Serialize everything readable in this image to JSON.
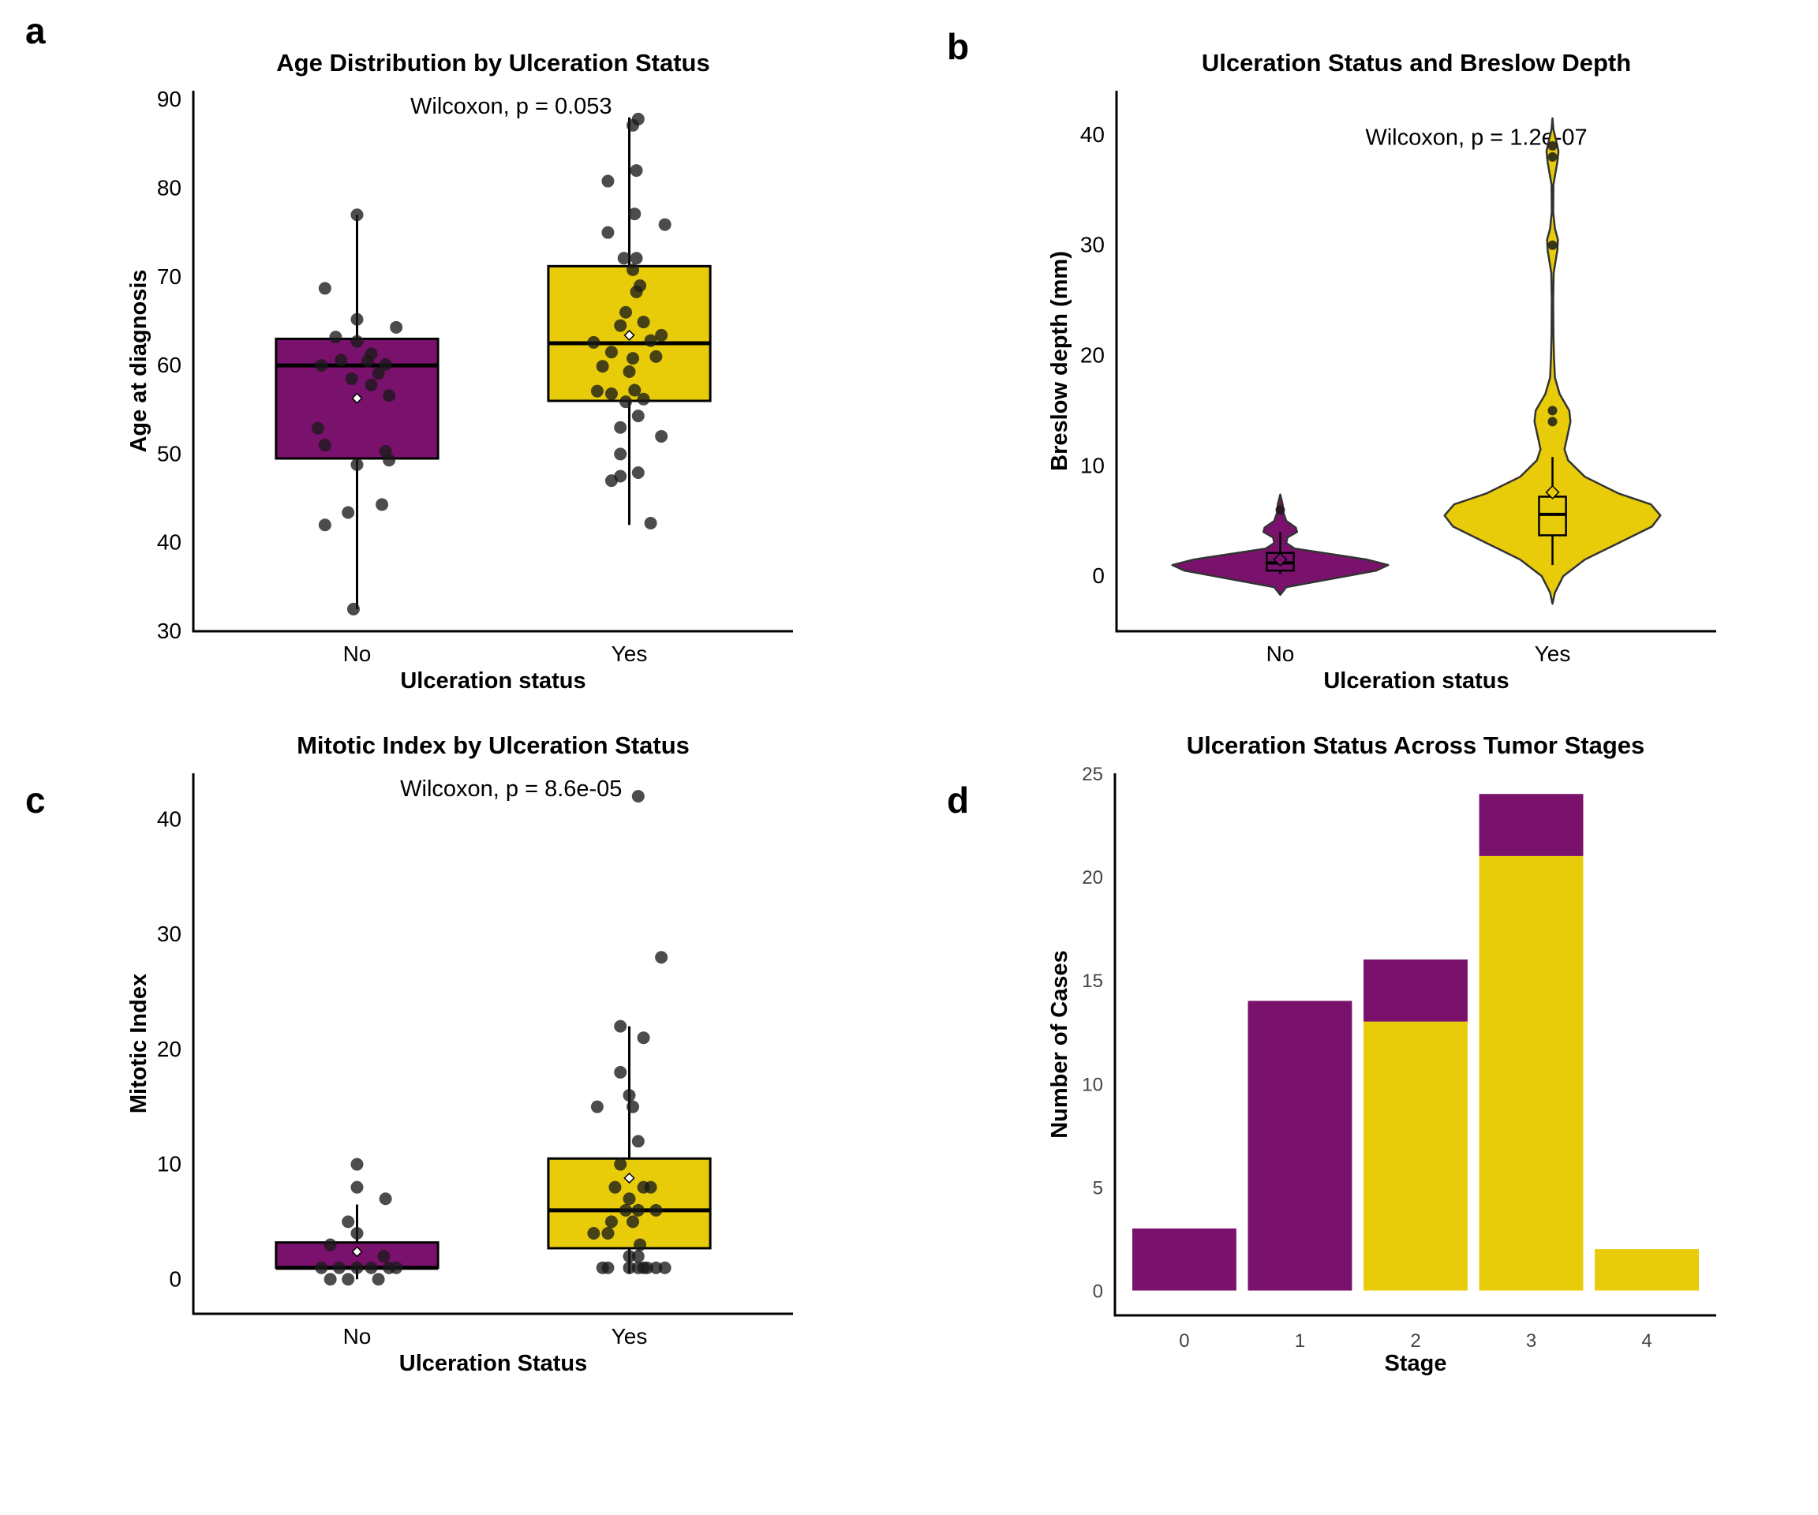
{
  "colors": {
    "no": "#7a116c",
    "yes": "#e8cc0a",
    "point": "#1a1a1a"
  },
  "chart_data": [
    {
      "id": "a",
      "panel_label": "a",
      "type": "box",
      "title": "Age Distribution by Ulceration Status",
      "xlabel": "Ulceration status",
      "ylabel": "Age at diagnosis",
      "ylim": [
        30,
        91
      ],
      "yticks": [
        30,
        40,
        50,
        60,
        70,
        80,
        90
      ],
      "categories": [
        "No",
        "Yes"
      ],
      "annotation": "Wilcoxon, p = 0.053",
      "groups": [
        {
          "name": "No",
          "q1": 49.5,
          "median": 60,
          "q3": 63,
          "whisker_low": 32.5,
          "whisker_high": 77,
          "mean": 56.3,
          "points": [
            [
              0.0,
              77
            ],
            [
              -0.18,
              68.7
            ],
            [
              0.0,
              65.2
            ],
            [
              0.22,
              64.3
            ],
            [
              -0.12,
              63.2
            ],
            [
              0.0,
              62.7
            ],
            [
              0.08,
              61.3
            ],
            [
              -0.09,
              60.6
            ],
            [
              0.06,
              60.5
            ],
            [
              0.16,
              60.1
            ],
            [
              -0.2,
              60.0
            ],
            [
              0.12,
              59.1
            ],
            [
              -0.03,
              58.5
            ],
            [
              0.08,
              57.8
            ],
            [
              0.18,
              56.6
            ],
            [
              -0.22,
              52.9
            ],
            [
              -0.18,
              51.0
            ],
            [
              0.16,
              50.3
            ],
            [
              0.0,
              48.8
            ],
            [
              0.18,
              49.3
            ],
            [
              0.14,
              44.3
            ],
            [
              -0.05,
              43.4
            ],
            [
              -0.18,
              42.0
            ],
            [
              -0.02,
              32.5
            ]
          ]
        },
        {
          "name": "Yes",
          "q1": 56,
          "median": 62.5,
          "q3": 71.2,
          "whisker_low": 42,
          "whisker_high": 88,
          "mean": 63.4,
          "points": [
            [
              0.05,
              87.8
            ],
            [
              0.02,
              87.1
            ],
            [
              0.04,
              82.0
            ],
            [
              -0.12,
              80.8
            ],
            [
              0.03,
              77.1
            ],
            [
              0.2,
              75.9
            ],
            [
              -0.12,
              75.0
            ],
            [
              -0.03,
              72.1
            ],
            [
              0.04,
              72.1
            ],
            [
              0.02,
              70.8
            ],
            [
              0.06,
              69.0
            ],
            [
              0.04,
              68.3
            ],
            [
              -0.02,
              66.0
            ],
            [
              0.08,
              64.9
            ],
            [
              -0.05,
              64.5
            ],
            [
              0.18,
              63.4
            ],
            [
              0.12,
              62.8
            ],
            [
              -0.2,
              62.6
            ],
            [
              -0.1,
              61.5
            ],
            [
              0.15,
              61.0
            ],
            [
              0.02,
              60.8
            ],
            [
              -0.15,
              59.9
            ],
            [
              0.0,
              59.3
            ],
            [
              -0.18,
              57.1
            ],
            [
              -0.1,
              56.8
            ],
            [
              0.03,
              57.2
            ],
            [
              0.08,
              56.2
            ],
            [
              -0.02,
              55.9
            ],
            [
              0.05,
              54.3
            ],
            [
              -0.05,
              53.0
            ],
            [
              0.18,
              52.0
            ],
            [
              -0.05,
              50.0
            ],
            [
              0.05,
              47.9
            ],
            [
              -0.05,
              47.5
            ],
            [
              -0.1,
              47.0
            ],
            [
              0.12,
              42.2
            ]
          ]
        }
      ]
    },
    {
      "id": "b",
      "panel_label": "b",
      "type": "violin",
      "title": "Ulceration Status and Breslow Depth",
      "xlabel": "Ulceration status",
      "ylabel": "Breslow depth (mm)",
      "ylim": [
        -5,
        44
      ],
      "yticks": [
        0,
        10,
        20,
        30,
        40
      ],
      "categories": [
        "No",
        "Yes"
      ],
      "annotation": "Wilcoxon, p = 1.2e-07",
      "groups": [
        {
          "name": "No",
          "q1": 0.5,
          "median": 1.2,
          "q3": 2.1,
          "whisker_low": 0.2,
          "whisker_high": 4.0,
          "mean": 1.5,
          "outliers": [
            6.0
          ],
          "density": [
            [
              -1.7,
              0.0
            ],
            [
              -1.0,
              0.05
            ],
            [
              0.0,
              0.55
            ],
            [
              0.5,
              0.8
            ],
            [
              1.0,
              0.9
            ],
            [
              1.5,
              0.72
            ],
            [
              2.0,
              0.42
            ],
            [
              2.5,
              0.12
            ],
            [
              3.0,
              0.05
            ],
            [
              3.5,
              0.06
            ],
            [
              4.0,
              0.14
            ],
            [
              4.4,
              0.13
            ],
            [
              5.0,
              0.05
            ],
            [
              5.8,
              0.025
            ],
            [
              6.5,
              0.02
            ],
            [
              7.4,
              0.0
            ]
          ]
        },
        {
          "name": "Yes",
          "q1": 3.7,
          "median": 5.6,
          "q3": 7.2,
          "whisker_low": 1.0,
          "whisker_high": 10.8,
          "mean": 7.6,
          "outliers": [
            39.0,
            38.0,
            30.0,
            15.0,
            14.0
          ],
          "density": [
            [
              -2.5,
              0.0
            ],
            [
              -1.5,
              0.02
            ],
            [
              0.0,
              0.09
            ],
            [
              1.5,
              0.27
            ],
            [
              3.0,
              0.55
            ],
            [
              4.5,
              0.83
            ],
            [
              5.5,
              0.9
            ],
            [
              6.5,
              0.82
            ],
            [
              7.5,
              0.55
            ],
            [
              9.0,
              0.27
            ],
            [
              10.5,
              0.13
            ],
            [
              11.5,
              0.1
            ],
            [
              12.5,
              0.12
            ],
            [
              14.0,
              0.15
            ],
            [
              15.0,
              0.14
            ],
            [
              16.5,
              0.06
            ],
            [
              18.0,
              0.02
            ],
            [
              20.0,
              0.012
            ],
            [
              22.0,
              0.008
            ],
            [
              25.0,
              0.006
            ],
            [
              27.5,
              0.01
            ],
            [
              29.5,
              0.04
            ],
            [
              30.5,
              0.045
            ],
            [
              31.5,
              0.02
            ],
            [
              33.0,
              0.006
            ],
            [
              35.5,
              0.008
            ],
            [
              37.5,
              0.04
            ],
            [
              38.5,
              0.05
            ],
            [
              39.5,
              0.03
            ],
            [
              40.5,
              0.008
            ],
            [
              41.5,
              0.0
            ]
          ]
        }
      ]
    },
    {
      "id": "c",
      "panel_label": "c",
      "type": "box",
      "title": "Mitotic Index by Ulceration Status",
      "xlabel": "Ulceration Status",
      "ylabel": "Mitotic Index",
      "ylim": [
        -3,
        44
      ],
      "yticks": [
        0,
        10,
        20,
        30,
        40
      ],
      "categories": [
        "No",
        "Yes"
      ],
      "annotation": "Wilcoxon, p = 8.6e-05",
      "groups": [
        {
          "name": "No",
          "q1": 1,
          "median": 1,
          "q3": 3.2,
          "whisker_low": 0,
          "whisker_high": 6.5,
          "mean": 2.4,
          "points": [
            [
              0.0,
              10
            ],
            [
              0.0,
              8
            ],
            [
              0.16,
              7
            ],
            [
              -0.05,
              5
            ],
            [
              0.0,
              4
            ],
            [
              -0.15,
              3
            ],
            [
              0.15,
              2
            ],
            [
              -0.2,
              1
            ],
            [
              -0.1,
              1
            ],
            [
              0.0,
              1
            ],
            [
              0.08,
              1
            ],
            [
              0.18,
              1
            ],
            [
              0.22,
              1
            ],
            [
              -0.15,
              0
            ],
            [
              -0.05,
              0
            ],
            [
              0.12,
              0
            ]
          ]
        },
        {
          "name": "Yes",
          "q1": 2.7,
          "median": 6,
          "q3": 10.5,
          "whisker_low": 0.5,
          "whisker_high": 22,
          "mean": 8.8,
          "points": [
            [
              0.05,
              42
            ],
            [
              0.18,
              28
            ],
            [
              -0.05,
              22
            ],
            [
              0.08,
              21
            ],
            [
              -0.05,
              18
            ],
            [
              -0.18,
              15
            ],
            [
              0.0,
              16
            ],
            [
              0.02,
              15
            ],
            [
              0.05,
              12
            ],
            [
              -0.05,
              10
            ],
            [
              0.08,
              8
            ],
            [
              0.12,
              8
            ],
            [
              -0.08,
              8
            ],
            [
              0.0,
              7
            ],
            [
              -0.02,
              6
            ],
            [
              0.05,
              6
            ],
            [
              0.15,
              6
            ],
            [
              -0.1,
              5
            ],
            [
              0.02,
              5
            ],
            [
              0.06,
              3
            ],
            [
              -0.2,
              4
            ],
            [
              -0.12,
              4
            ],
            [
              0.0,
              2
            ],
            [
              0.05,
              2
            ],
            [
              -0.12,
              1
            ],
            [
              -0.15,
              1
            ],
            [
              0.0,
              1
            ],
            [
              0.05,
              1
            ],
            [
              0.1,
              1
            ],
            [
              0.15,
              1
            ],
            [
              0.2,
              1
            ],
            [
              0.08,
              1
            ]
          ]
        }
      ]
    },
    {
      "id": "d",
      "panel_label": "d",
      "type": "bar",
      "stacked": true,
      "title": "Ulceration Status Across Tumor Stages",
      "xlabel": "Stage",
      "ylabel": "Number of Cases",
      "ylim": [
        -1.2,
        25
      ],
      "yticks": [
        0,
        5,
        10,
        15,
        20,
        25
      ],
      "categories": [
        "0",
        "1",
        "2",
        "3",
        "4"
      ],
      "series": [
        {
          "key": "yes",
          "values": [
            0,
            0,
            13,
            21,
            2
          ]
        },
        {
          "key": "no",
          "values": [
            3,
            14,
            3,
            3,
            0
          ]
        }
      ]
    }
  ]
}
